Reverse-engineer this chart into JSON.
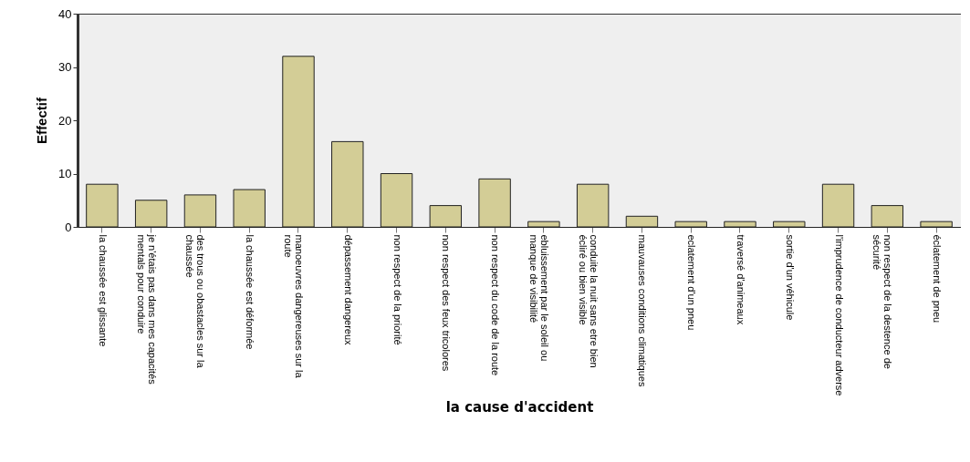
{
  "chart_data": {
    "type": "bar",
    "xlabel": "la cause d'accident",
    "ylabel": "Effectif",
    "categories": [
      "la chaussée est glissante",
      "je n'étais pas dans mes capacités mentals pour conduire",
      "des trous ou obastacles sur la chaussée",
      "la chaussée est déformée",
      "manoeuvres dangereuses sur la route",
      "dépassement dangereux",
      "non respect de la priorité",
      "non respect des feux tricolores",
      "non respect du code de la route",
      "ebluissement par le soleil ou manque de visibilité",
      "conduite la nuit sans etre bien écliré ou bien visible",
      "mauvauses conditions climatiques",
      "eclatement d'un pneu",
      "traversé d'animeaux",
      "sortie d'un véhicule",
      "l'imprudence de conducteur adverse",
      "non respect de la destence de sécurité",
      "éclatement de pneu"
    ],
    "values": [
      8,
      5,
      6,
      7,
      32,
      16,
      10,
      4,
      9,
      1,
      8,
      2,
      1,
      1,
      1,
      8,
      4,
      1
    ],
    "color": "#d3cd96",
    "ylim": [
      0,
      40
    ],
    "yticks": [
      0,
      10,
      20,
      30,
      40
    ],
    "grid": false
  }
}
